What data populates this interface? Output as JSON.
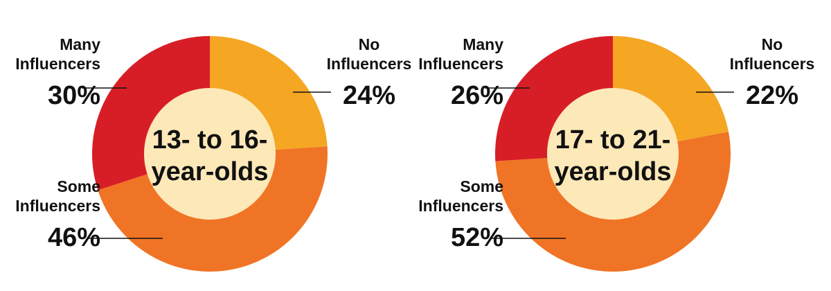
{
  "colors": {
    "no": "#F5A623",
    "some": "#F07425",
    "many": "#D71E26",
    "center": "#FDE8B8",
    "text": "#111111",
    "leader": "#111111"
  },
  "chart_data": [
    {
      "type": "donut",
      "center_lines": [
        "13- to 16-",
        "year-olds"
      ],
      "slices": [
        {
          "key": "no",
          "label_lines": [
            "No",
            "Influencers"
          ],
          "value": 24,
          "value_label": "24%"
        },
        {
          "key": "some",
          "label_lines": [
            "Some",
            "Influencers"
          ],
          "value": 46,
          "value_label": "46%"
        },
        {
          "key": "many",
          "label_lines": [
            "Many",
            "Influencers"
          ],
          "value": 30,
          "value_label": "30%"
        }
      ]
    },
    {
      "type": "donut",
      "center_lines": [
        "17- to 21-",
        "year-olds"
      ],
      "slices": [
        {
          "key": "no",
          "label_lines": [
            "No",
            "Influencers"
          ],
          "value": 22,
          "value_label": "22%"
        },
        {
          "key": "some",
          "label_lines": [
            "Some",
            "Influencers"
          ],
          "value": 52,
          "value_label": "52%"
        },
        {
          "key": "many",
          "label_lines": [
            "Many",
            "Influencers"
          ],
          "value": 26,
          "value_label": "26%"
        }
      ]
    }
  ]
}
